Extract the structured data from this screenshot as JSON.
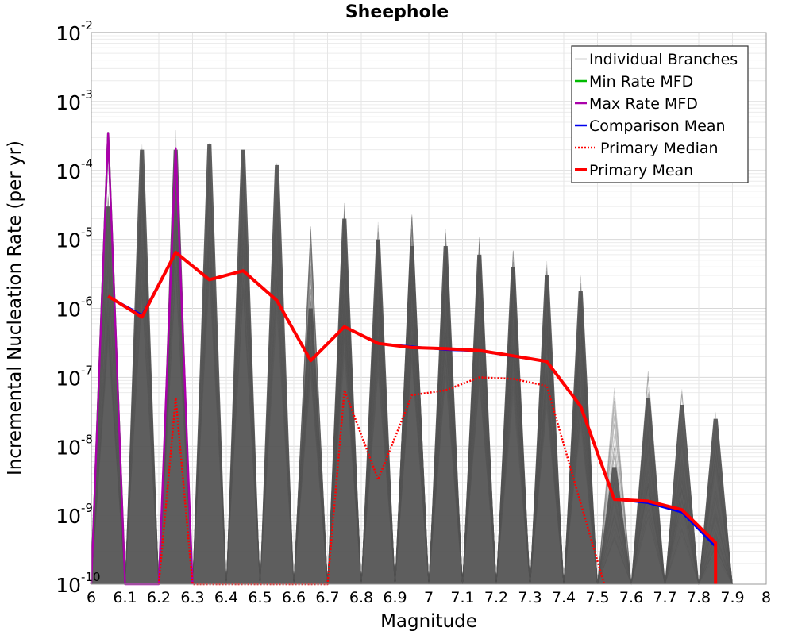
{
  "chart_data": {
    "type": "line",
    "title": "Sheephole",
    "xlabel": "Magnitude",
    "ylabel": "Incremental Nucleation Rate (per yr)",
    "xlim": [
      6,
      8
    ],
    "ylim": [
      1e-10,
      0.01
    ],
    "y_scale": "log",
    "grid": true,
    "legend_position": "top-right",
    "x_ticks": [
      "6",
      "6.1",
      "6.2",
      "6.3",
      "6.4",
      "6.5",
      "6.6",
      "6.7",
      "6.8",
      "6.9",
      "7",
      "7.1",
      "7.2",
      "7.3",
      "7.4",
      "7.5",
      "7.6",
      "7.7",
      "7.8",
      "7.9",
      "8"
    ],
    "y_ticks": [
      {
        "base": "10",
        "exp": "-2",
        "value": 0.01
      },
      {
        "base": "10",
        "exp": "-3",
        "value": 0.001
      },
      {
        "base": "10",
        "exp": "-4",
        "value": 0.0001
      },
      {
        "base": "10",
        "exp": "-5",
        "value": 1e-05
      },
      {
        "base": "10",
        "exp": "-6",
        "value": 1e-06
      },
      {
        "base": "10",
        "exp": "-7",
        "value": 1e-07
      },
      {
        "base": "10",
        "exp": "-8",
        "value": 1e-08
      },
      {
        "base": "10",
        "exp": "-9",
        "value": 1e-09
      },
      {
        "base": "10",
        "exp": "-10",
        "value": 1e-10
      }
    ],
    "series": [
      {
        "name": "Individual Branches",
        "color": "#555555",
        "style": "thin"
      },
      {
        "name": "Min Rate MFD",
        "color": "#00bb00",
        "style": "solid",
        "x": [
          6.0,
          6.05,
          6.1
        ],
        "y": [
          1e-10,
          0.00035,
          1e-10
        ]
      },
      {
        "name": "Max Rate MFD",
        "color": "#aa00aa",
        "style": "solid",
        "x": [
          6.0,
          6.05,
          6.1,
          6.2,
          6.25,
          6.3
        ],
        "y": [
          1e-10,
          0.00035,
          1e-10,
          1e-10,
          0.00021,
          1e-10
        ]
      },
      {
        "name": "Comparison Mean",
        "color": "#0000ee",
        "style": "solid",
        "x": [
          6.05,
          6.15,
          6.25,
          6.35,
          6.45,
          6.55,
          6.65,
          6.75,
          6.85,
          6.95,
          7.05,
          7.15,
          7.25,
          7.35,
          7.45,
          7.55,
          7.65,
          7.75,
          7.85,
          7.85
        ],
        "y": [
          1.5e-06,
          8e-07,
          6.5e-06,
          2.6e-06,
          3.5e-06,
          1.3e-06,
          1.75e-07,
          5.4e-07,
          3.1e-07,
          2.8e-07,
          2.5e-07,
          2.4e-07,
          2e-07,
          1.7e-07,
          3.8e-08,
          1.7e-09,
          1.5e-09,
          1.1e-09,
          3.5e-10,
          1e-10
        ]
      },
      {
        "name": "Primary Median",
        "color": "#ff0000",
        "style": "dotted",
        "x": [
          6.2,
          6.25,
          6.3,
          6.7,
          6.75,
          6.85,
          6.95,
          7.05,
          7.15,
          7.25,
          7.35,
          7.45,
          7.52
        ],
        "y": [
          1e-10,
          5e-08,
          1e-10,
          1e-10,
          6.5e-08,
          3.3e-09,
          5.5e-08,
          6.5e-08,
          1e-07,
          9.5e-08,
          7.5e-08,
          1.5e-09,
          1e-10
        ]
      },
      {
        "name": "Primary Mean",
        "color": "#ff0000",
        "style": "thick",
        "x": [
          6.05,
          6.15,
          6.25,
          6.35,
          6.45,
          6.55,
          6.65,
          6.75,
          6.85,
          6.95,
          7.05,
          7.15,
          7.25,
          7.35,
          7.45,
          7.55,
          7.65,
          7.75,
          7.85,
          7.85
        ],
        "y": [
          1.5e-06,
          7.5e-07,
          6.5e-06,
          2.6e-06,
          3.5e-06,
          1.3e-06,
          1.75e-07,
          5.4e-07,
          3.1e-07,
          2.7e-07,
          2.6e-07,
          2.45e-07,
          2.05e-07,
          1.7e-07,
          3.8e-08,
          1.7e-09,
          1.6e-09,
          1.2e-09,
          4e-10,
          1e-10
        ]
      }
    ],
    "branch_peaks": {
      "x": [
        6.05,
        6.15,
        6.25,
        6.35,
        6.45,
        6.55,
        6.65,
        6.75,
        6.85,
        6.95,
        7.05,
        7.15,
        7.25,
        7.35,
        7.45,
        7.55,
        7.65,
        7.75,
        7.85
      ],
      "max": [
        4.5e-05,
        0.00024,
        0.0004,
        0.00027,
        0.00023,
        0.00014,
        1.6e-05,
        3.4e-05,
        1.8e-05,
        2.4e-05,
        1.5e-05,
        1.1e-05,
        7e-06,
        5e-06,
        3e-06,
        7e-08,
        1.3e-07,
        8e-08,
        3.5e-08
      ],
      "dense": [
        3e-05,
        0.0002,
        0.0002,
        0.00024,
        0.0002,
        0.00012,
        1e-06,
        2e-05,
        1e-05,
        8e-06,
        8e-06,
        6e-06,
        4e-06,
        3e-06,
        1.8e-06,
        5e-09,
        5e-08,
        4e-08,
        2.5e-08
      ]
    }
  }
}
